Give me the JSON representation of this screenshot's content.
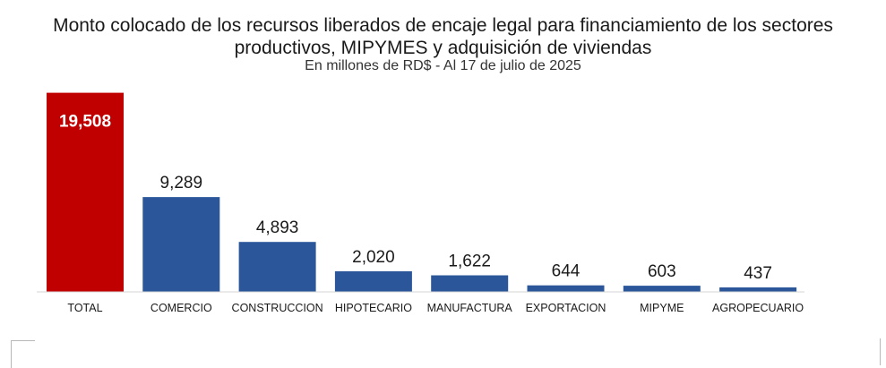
{
  "chart_data": {
    "type": "bar",
    "title": "Monto colocado de los recursos liberados de encaje legal para financiamiento de los sectores productivos, MIPYMES y adquisición de viviendas",
    "subtitle": "En millones de RD$ - Al 17 de julio de 2025",
    "categories": [
      "TOTAL",
      "COMERCIO",
      "CONSTRUCCION",
      "HIPOTECARIO",
      "MANUFACTURA",
      "EXPORTACION",
      "MIPYME",
      "AGROPECUARIO"
    ],
    "values": [
      19508,
      9289,
      4893,
      2020,
      1622,
      644,
      603,
      437
    ],
    "value_labels": [
      "19,508",
      "9,289",
      "4,893",
      "2,020",
      "1,622",
      "644",
      "603",
      "437"
    ],
    "colors": [
      "#c00000",
      "#2b579a",
      "#2b579a",
      "#2b579a",
      "#2b579a",
      "#2b579a",
      "#2b579a",
      "#2b579a"
    ],
    "ylim": [
      0,
      20000
    ],
    "grid": false,
    "legend": "none"
  }
}
